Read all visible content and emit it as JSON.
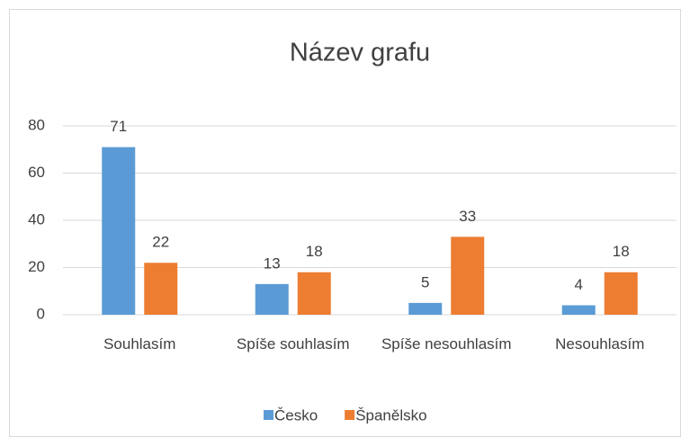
{
  "chart_data": {
    "type": "bar",
    "title": "Název grafu",
    "categories": [
      "Souhlasím",
      "Spíše souhlasím",
      "Spíše nesouhlasím",
      "Nesouhlasím"
    ],
    "series": [
      {
        "name": "Česko",
        "color": "#5b9bd5",
        "values": [
          71,
          13,
          5,
          4
        ]
      },
      {
        "name": "Španělsko",
        "color": "#ed7d31",
        "values": [
          22,
          18,
          33,
          18
        ]
      }
    ],
    "ylim": [
      0,
      80
    ],
    "yticks": [
      0,
      20,
      40,
      60,
      80
    ],
    "grid": true,
    "legend": "bottom"
  }
}
